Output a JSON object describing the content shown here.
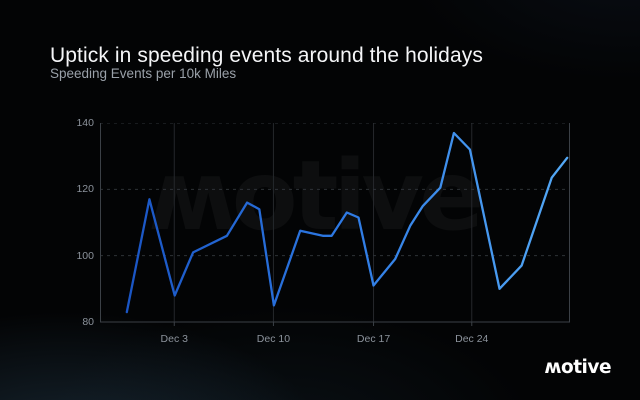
{
  "header": {
    "title": "Uptick in speeding events around the holidays",
    "subtitle": "Speeding Events per 10k Miles"
  },
  "watermark_text": "ʍotive",
  "logo_text": "ʍotive",
  "colors": {
    "background": "#030405",
    "title": "#f5f6f8",
    "subtitle": "#9aa1a9",
    "tick_label": "#8c939c",
    "axis_border": "#3b4046",
    "grid_vertical": "#25282c",
    "grid_horizontal": "#2e3237",
    "line_gradient": [
      "#1a55c4",
      "#2e7ae4",
      "#54a9f6"
    ]
  },
  "chart_data": {
    "type": "line",
    "title": "Speeding Events per 10k Miles",
    "xlabel": "",
    "ylabel": "",
    "ylim": [
      80,
      140
    ],
    "y_ticks": [
      80,
      100,
      120,
      140
    ],
    "grid": "horizontal-dashed, vertical-solid-at-date-ticks",
    "legend": "none",
    "x_ticks": [
      {
        "label": "Dec 3",
        "pos": 0.158
      },
      {
        "label": "Dec 10",
        "pos": 0.369
      },
      {
        "label": "Dec 17",
        "pos": 0.582
      },
      {
        "label": "Dec 24",
        "pos": 0.791
      }
    ],
    "series_name": "Speeding Events per 10k Miles",
    "points": [
      {
        "x": 0.057,
        "v": 83
      },
      {
        "x": 0.105,
        "v": 117
      },
      {
        "x": 0.159,
        "v": 88
      },
      {
        "x": 0.198,
        "v": 101
      },
      {
        "x": 0.27,
        "v": 106
      },
      {
        "x": 0.313,
        "v": 116
      },
      {
        "x": 0.339,
        "v": 114
      },
      {
        "x": 0.37,
        "v": 85
      },
      {
        "x": 0.426,
        "v": 107.5
      },
      {
        "x": 0.474,
        "v": 106
      },
      {
        "x": 0.493,
        "v": 106
      },
      {
        "x": 0.525,
        "v": 113
      },
      {
        "x": 0.55,
        "v": 111.5
      },
      {
        "x": 0.582,
        "v": 91
      },
      {
        "x": 0.628,
        "v": 99
      },
      {
        "x": 0.66,
        "v": 109
      },
      {
        "x": 0.687,
        "v": 115
      },
      {
        "x": 0.724,
        "v": 120.5
      },
      {
        "x": 0.753,
        "v": 137
      },
      {
        "x": 0.787,
        "v": 132
      },
      {
        "x": 0.85,
        "v": 90
      },
      {
        "x": 0.897,
        "v": 97
      },
      {
        "x": 0.961,
        "v": 123.5
      },
      {
        "x": 0.994,
        "v": 129.5
      }
    ]
  }
}
